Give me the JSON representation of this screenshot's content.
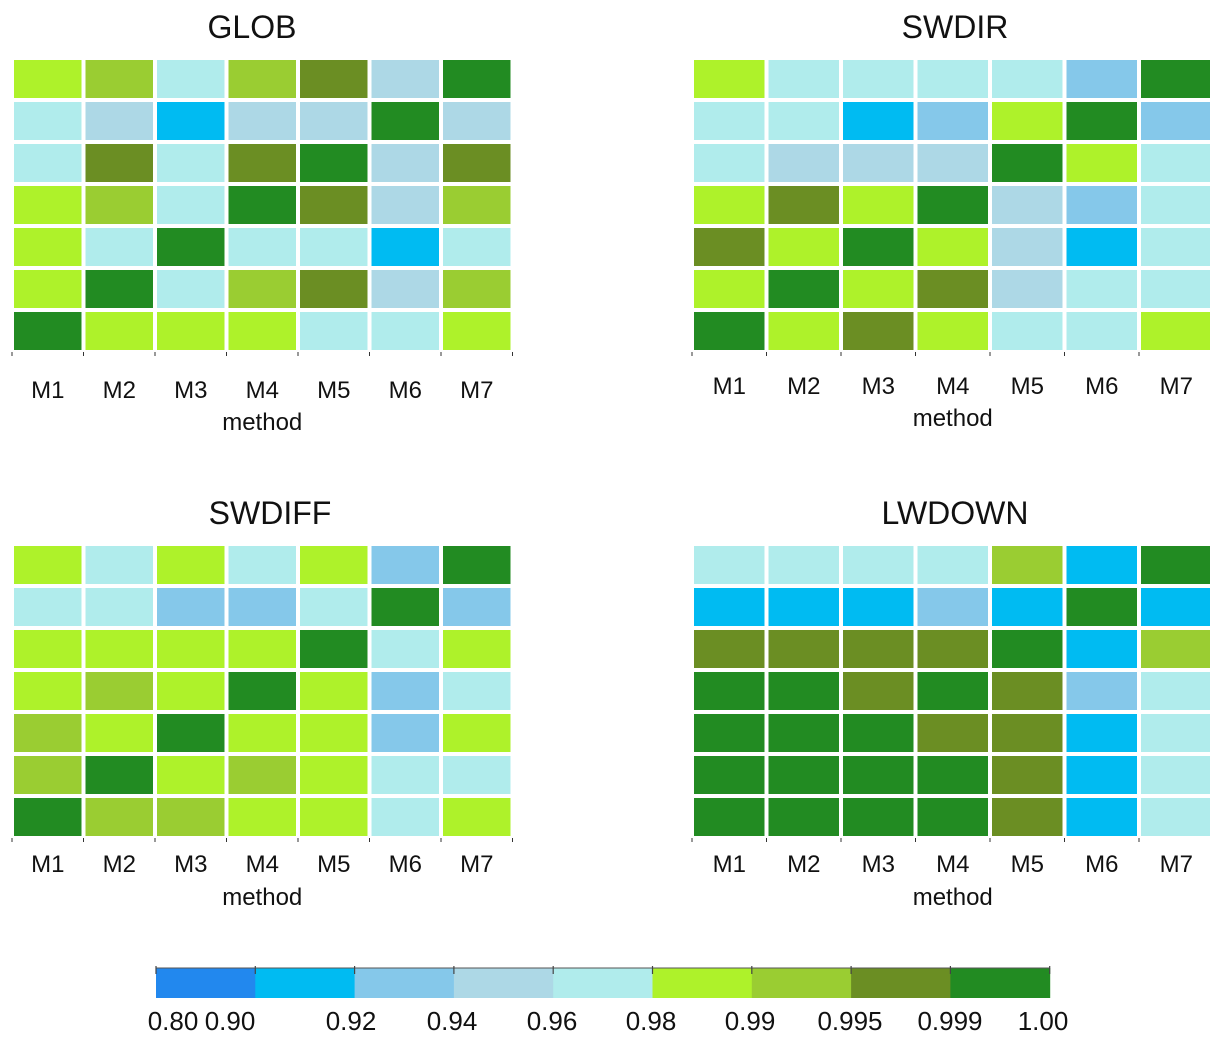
{
  "legend_colors": [
    "#2288ee",
    "#00bbf2",
    "#85c8ea",
    "#add8e6",
    "#b0ecec",
    "#aef22a",
    "#9acd32",
    "#6b8e23",
    "#228b22"
  ],
  "chart_data": {
    "type": "heatmap",
    "x_axis_label": "method",
    "categories": [
      "M1",
      "M2",
      "M3",
      "M4",
      "M5",
      "M6",
      "M7"
    ],
    "colorbar": {
      "tick_labels": [
        "0.80",
        "0.90",
        "0.92",
        "0.94",
        "0.96",
        "0.98",
        "0.99",
        "0.995",
        "0.999",
        "1.00"
      ]
    },
    "panels": [
      {
        "title": "GLOB",
        "grid": [
          [
            0.985,
            0.993,
            0.97,
            0.993,
            0.997,
            0.95,
            1.0
          ],
          [
            0.97,
            0.95,
            0.91,
            0.95,
            0.95,
            1.0,
            0.95
          ],
          [
            0.97,
            0.997,
            0.97,
            0.997,
            1.0,
            0.95,
            0.997
          ],
          [
            0.985,
            0.993,
            0.97,
            1.0,
            0.997,
            0.95,
            0.993
          ],
          [
            0.985,
            0.97,
            1.0,
            0.97,
            0.97,
            0.91,
            0.97
          ],
          [
            0.985,
            1.0,
            0.97,
            0.993,
            0.997,
            0.95,
            0.993
          ],
          [
            1.0,
            0.985,
            0.985,
            0.985,
            0.97,
            0.97,
            0.985
          ]
        ]
      },
      {
        "title": "SWDIR",
        "grid": [
          [
            0.985,
            0.97,
            0.97,
            0.97,
            0.97,
            0.93,
            1.0
          ],
          [
            0.97,
            0.97,
            0.91,
            0.93,
            0.985,
            1.0,
            0.93
          ],
          [
            0.97,
            0.95,
            0.95,
            0.95,
            1.0,
            0.985,
            0.97
          ],
          [
            0.985,
            0.997,
            0.985,
            1.0,
            0.95,
            0.93,
            0.97
          ],
          [
            0.997,
            0.985,
            1.0,
            0.985,
            0.95,
            0.91,
            0.97
          ],
          [
            0.985,
            1.0,
            0.985,
            0.997,
            0.95,
            0.97,
            0.97
          ],
          [
            1.0,
            0.985,
            0.997,
            0.985,
            0.97,
            0.97,
            0.985
          ]
        ]
      },
      {
        "title": "SWDIFF",
        "grid": [
          [
            0.985,
            0.97,
            0.985,
            0.97,
            0.985,
            0.93,
            1.0
          ],
          [
            0.97,
            0.97,
            0.93,
            0.93,
            0.97,
            1.0,
            0.93
          ],
          [
            0.985,
            0.985,
            0.985,
            0.985,
            1.0,
            0.97,
            0.985
          ],
          [
            0.985,
            0.993,
            0.985,
            1.0,
            0.985,
            0.93,
            0.97
          ],
          [
            0.993,
            0.985,
            1.0,
            0.985,
            0.985,
            0.93,
            0.985
          ],
          [
            0.993,
            1.0,
            0.985,
            0.993,
            0.985,
            0.97,
            0.97
          ],
          [
            1.0,
            0.993,
            0.993,
            0.985,
            0.985,
            0.97,
            0.985
          ]
        ]
      },
      {
        "title": "LWDOWN",
        "grid": [
          [
            0.97,
            0.97,
            0.97,
            0.97,
            0.993,
            0.91,
            1.0
          ],
          [
            0.91,
            0.91,
            0.91,
            0.93,
            0.91,
            1.0,
            0.91
          ],
          [
            0.997,
            0.997,
            0.997,
            0.997,
            1.0,
            0.91,
            0.993
          ],
          [
            1.0,
            1.0,
            0.997,
            1.0,
            0.997,
            0.93,
            0.97
          ],
          [
            1.0,
            1.0,
            1.0,
            0.997,
            0.997,
            0.91,
            0.97
          ],
          [
            1.0,
            1.0,
            1.0,
            1.0,
            0.997,
            0.91,
            0.97
          ],
          [
            1.0,
            1.0,
            1.0,
            1.0,
            0.997,
            0.91,
            0.97
          ]
        ]
      }
    ]
  }
}
